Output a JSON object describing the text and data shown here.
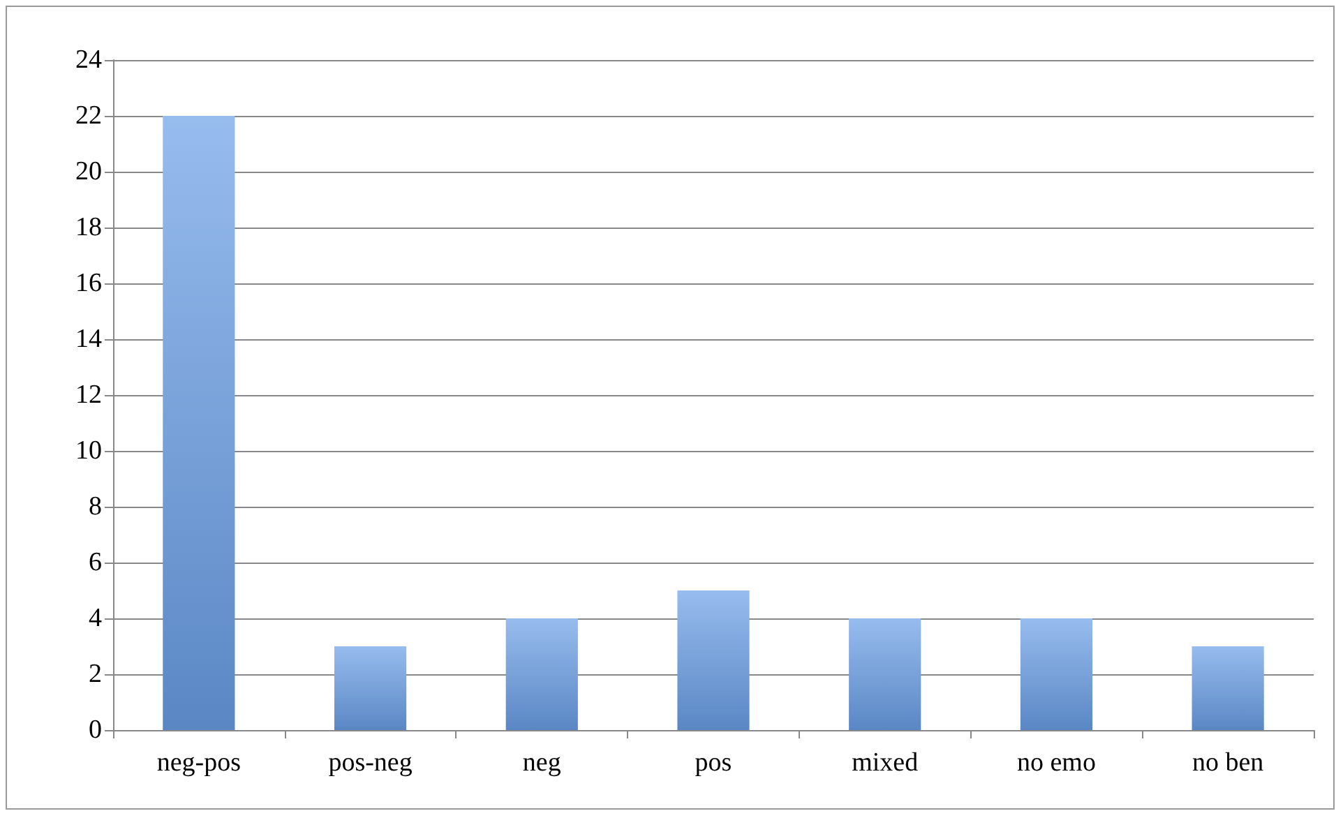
{
  "chart_data": {
    "type": "bar",
    "categories": [
      "neg-pos",
      "pos-neg",
      "neg",
      "pos",
      "mixed",
      "no emo",
      "no ben"
    ],
    "values": [
      22,
      3,
      4,
      5,
      4,
      4,
      3
    ],
    "color": "#6a9fe6",
    "ylim": [
      0,
      24
    ],
    "yticks": [
      0,
      2,
      4,
      6,
      8,
      10,
      12,
      14,
      16,
      18,
      20,
      22,
      24
    ],
    "grid": "y"
  }
}
